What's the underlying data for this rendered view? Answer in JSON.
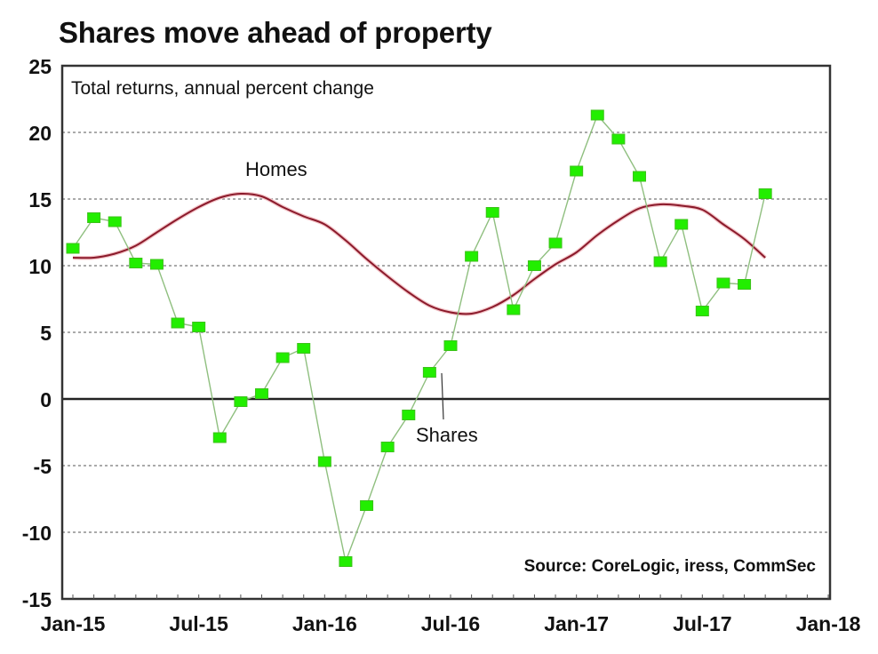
{
  "chart_data": {
    "type": "line",
    "title": "Shares move ahead of property",
    "subtitle": "Total returns, annual percent change",
    "source": "Source: CoreLogic, iress, CommSec",
    "xlabel": "",
    "ylabel": "",
    "ylim": [
      -15,
      25
    ],
    "yticks": [
      25,
      20,
      15,
      10,
      5,
      0,
      -5,
      -10,
      -15
    ],
    "ytick_labels": [
      "25",
      "20",
      "15",
      "10",
      "5",
      "0",
      "-5",
      "-10",
      "-15"
    ],
    "xlim": [
      "2015-01",
      "2018-01"
    ],
    "xticks": [
      "2015-01",
      "2015-07",
      "2016-01",
      "2016-07",
      "2017-01",
      "2017-07",
      "2018-01"
    ],
    "xtick_labels": [
      "Jan-15",
      "Jul-15",
      "Jan-16",
      "Jul-16",
      "Jan-17",
      "Jul-17",
      "Jan-18"
    ],
    "grid": "horizontal dotted",
    "legend": "none (inline labels)",
    "x": [
      "2015-01",
      "2015-02",
      "2015-03",
      "2015-04",
      "2015-05",
      "2015-06",
      "2015-07",
      "2015-08",
      "2015-09",
      "2015-10",
      "2015-11",
      "2015-12",
      "2016-01",
      "2016-02",
      "2016-03",
      "2016-04",
      "2016-05",
      "2016-06",
      "2016-07",
      "2016-08",
      "2016-09",
      "2016-10",
      "2016-11",
      "2016-12",
      "2017-01",
      "2017-02",
      "2017-03",
      "2017-04",
      "2017-05",
      "2017-06",
      "2017-07",
      "2017-08",
      "2017-09",
      "2017-10"
    ],
    "series": [
      {
        "name": "Homes",
        "color": "#8b1a2b",
        "marker": "none",
        "values": [
          10.6,
          10.6,
          10.9,
          11.5,
          12.5,
          13.5,
          14.4,
          15.1,
          15.4,
          15.2,
          14.4,
          13.7,
          13.1,
          11.9,
          10.5,
          9.2,
          8.0,
          7.0,
          6.5,
          6.4,
          6.9,
          7.8,
          9.0,
          10.1,
          11.0,
          12.3,
          13.4,
          14.3,
          14.6,
          14.5,
          14.2,
          13.1,
          12.0,
          10.6
        ]
      },
      {
        "name": "Shares",
        "color": "#22ee00",
        "line_color": "#8fbf7f",
        "marker": "square",
        "values": [
          11.3,
          13.6,
          13.3,
          10.2,
          10.1,
          5.7,
          5.4,
          -2.9,
          -0.2,
          0.4,
          3.1,
          3.8,
          -4.7,
          -12.2,
          -8.0,
          -3.6,
          -1.2,
          2.0,
          4.0,
          10.7,
          14.0,
          6.7,
          10.0,
          11.7,
          17.1,
          21.3,
          19.5,
          16.7,
          10.3,
          13.1,
          6.6,
          8.7,
          8.6,
          15.4
        ]
      }
    ],
    "annotations": [
      {
        "text": "Homes",
        "near": "Sep-15, above line"
      },
      {
        "text": "Shares",
        "near": "Jun-16, below zero, with leader line"
      }
    ]
  }
}
